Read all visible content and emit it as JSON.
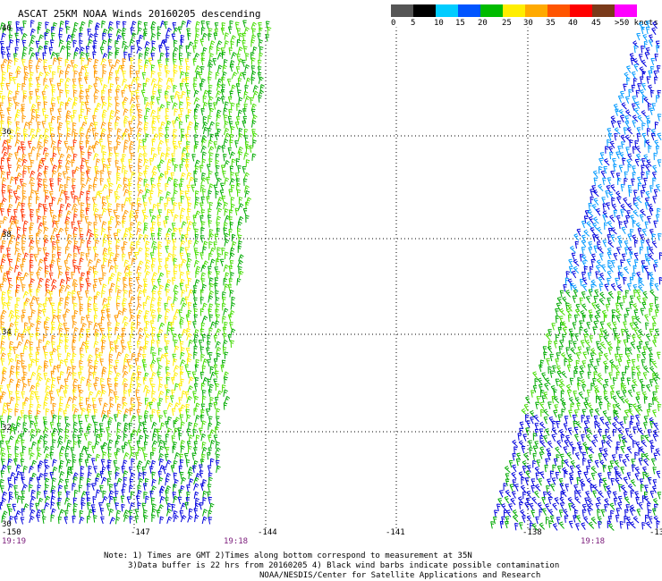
{
  "title": "ASCAT 25KM NOAA Winds 20160205 descending",
  "legend": {
    "colors": [
      "#444444",
      "#888888",
      "#00c8ff",
      "#0080ff",
      "#00c000",
      "#00ff00",
      "#ffff00",
      "#ffc000",
      "#ff8000",
      "#ff0000",
      "#804000",
      "#ff00ff",
      "#8000ff",
      "#400080"
    ],
    "labels": [
      "0",
      "5",
      "10",
      "15",
      "20",
      "25",
      "30",
      "35",
      "40",
      "45",
      ">50 knots"
    ]
  },
  "lat_labels": [
    "40",
    "36",
    "38",
    "34",
    "32",
    "30"
  ],
  "lon_labels": [
    "-150",
    "-147",
    "-144",
    "-141",
    "-138",
    "-13"
  ],
  "times": {
    "left_start": "19:19",
    "left_end": "19:18",
    "right_end": "19:18"
  },
  "notes": {
    "line1": "Note: 1) Times are GMT 2)Times along bottom correspond to measurement at 35N",
    "line2": "3)Data buffer is 22 hrs from 20160205 4) Black wind barbs indicate possible contamination",
    "line3": "NOAA/NESDIS/Center for Satellite Applications and Research"
  },
  "barb_colors": {
    "blue": "#0000dd",
    "lightblue": "#0099ff",
    "green": "#00aa00",
    "lime": "#44dd00",
    "yellow": "#ffee00",
    "orange": "#ff9900",
    "red": "#ff3300",
    "darkred": "#cc0044"
  }
}
